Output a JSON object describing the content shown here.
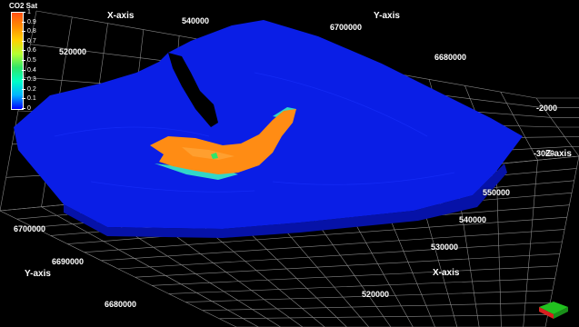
{
  "legend": {
    "title": "CO2 Sat",
    "ticks": [
      "1",
      "0.9",
      "0.8",
      "0.7",
      "0.6",
      "0.5",
      "0.4",
      "0.3",
      "0.2",
      "0.1",
      "0"
    ],
    "colors": [
      "#0000ff",
      "#00b4ff",
      "#00ffc8",
      "#2ee66a",
      "#b4ff32",
      "#ffd200",
      "#ff8c00",
      "#ff5014"
    ]
  },
  "axes": {
    "x_axis_top": {
      "title": "X-axis",
      "ticks": [
        "540000",
        "520000"
      ]
    },
    "y_axis_top": {
      "title": "Y-axis",
      "ticks": [
        "6700000",
        "6680000"
      ]
    },
    "z_axis": {
      "title": "Z-axis",
      "ticks": [
        "-2000",
        "-3000"
      ]
    },
    "x_axis_bottom": {
      "title": "X-axis",
      "ticks": [
        "550000",
        "540000",
        "530000",
        "520000"
      ]
    },
    "y_axis_bottom": {
      "title": "Y-axis",
      "ticks": [
        "6700000",
        "6690000",
        "6680000"
      ]
    }
  },
  "colors": {
    "background": "#000000",
    "grid": "#9a9a9a",
    "reservoir_surface": "#0a1ee6",
    "reservoir_side": "#0612a8",
    "plume": "#ff8c14",
    "plume_edge": "#33d6c8"
  },
  "orientation_widget": {
    "icon": "axes-orientation-icon"
  }
}
